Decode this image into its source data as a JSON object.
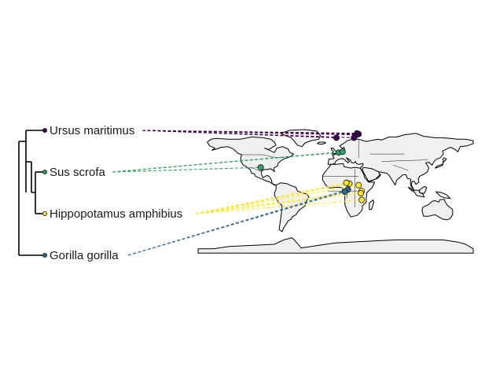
{
  "tips": [
    {
      "id": "ursus",
      "label": "Ursus maritimus",
      "color": "#440154",
      "occurrences": [
        [
          27,
          76
        ],
        [
          28,
          78
        ],
        [
          30,
          77
        ],
        [
          24,
          72
        ],
        [
          1,
          72
        ]
      ]
    },
    {
      "id": "sus",
      "label": "Sus scrofa",
      "color": "#2ca065",
      "occurrences": [
        [
          4,
          52
        ],
        [
          9,
          53
        ],
        [
          -98,
          32
        ]
      ]
    },
    {
      "id": "hippo",
      "label": "Hippopotamus amphibius",
      "color": "#fde725",
      "occurrences": [
        [
          30,
          8
        ],
        [
          18,
          10
        ],
        [
          14,
          11
        ],
        [
          34,
          0
        ],
        [
          33,
          -3
        ],
        [
          34,
          -12
        ]
      ]
    },
    {
      "id": "gorilla",
      "label": "Gorilla gorilla",
      "color": "#31688e",
      "occurrences": [
        [
          16,
          2
        ],
        [
          12,
          -1
        ]
      ]
    }
  ],
  "tree": {
    "clades": [
      [
        "ursus",
        [
          "sus",
          [
            "hippo"
          ]
        ]
      ],
      [
        "gorilla"
      ]
    ]
  },
  "map": {
    "projection": "equirectangular",
    "lon_range": [
      -180,
      180
    ],
    "lat_range": [
      -90,
      83
    ]
  }
}
